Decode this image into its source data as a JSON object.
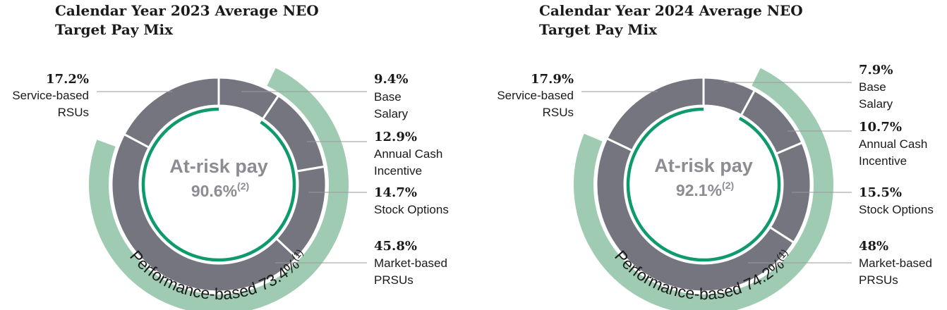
{
  "colors": {
    "segment": "#75757f",
    "segment_stroke": "#ffffff",
    "outer_arc": "#9fcbb3",
    "inner_arc": "#0e9a6c"
  },
  "chart_data": [
    {
      "type": "pie",
      "title_line1": "Calendar Year 2023 Average NEO",
      "title_line2": "Target Pay Mix",
      "center_label": "At-risk pay",
      "center_value": "90.6%",
      "center_note": "(2)",
      "outer_arc_label": "Performance-based 73.4%",
      "outer_arc_note": "(1)",
      "outer_arc_value": 73.4,
      "inner_arc_value": 90.6,
      "segments": [
        {
          "name": "Base Salary",
          "pct_label": "9.4%",
          "value": 9.4,
          "label_lines": [
            "Base",
            "Salary"
          ]
        },
        {
          "name": "Annual Cash Incentive",
          "pct_label": "12.9%",
          "value": 12.9,
          "label_lines": [
            "Annual Cash",
            "Incentive"
          ]
        },
        {
          "name": "Stock Options",
          "pct_label": "14.7%",
          "value": 14.7,
          "label_lines": [
            "Stock Options"
          ]
        },
        {
          "name": "Market-based PRSUs",
          "pct_label": "45.8%",
          "value": 45.8,
          "label_lines": [
            "Market-based",
            "PRSUs"
          ]
        },
        {
          "name": "Service-based RSUs",
          "pct_label": "17.2%",
          "value": 17.2,
          "label_lines": [
            "Service-based",
            "RSUs"
          ]
        }
      ]
    },
    {
      "type": "pie",
      "title_line1": "Calendar Year 2024 Average NEO",
      "title_line2": "Target Pay Mix",
      "center_label": "At-risk pay",
      "center_value": "92.1%",
      "center_note": "(2)",
      "outer_arc_label": "Performance-based 74.2%",
      "outer_arc_note": "(1)",
      "outer_arc_value": 74.2,
      "inner_arc_value": 92.1,
      "segments": [
        {
          "name": "Base Salary",
          "pct_label": "7.9%",
          "value": 7.9,
          "label_lines": [
            "Base",
            "Salary"
          ]
        },
        {
          "name": "Annual Cash Incentive",
          "pct_label": "10.7%",
          "value": 10.7,
          "label_lines": [
            "Annual Cash",
            "Incentive"
          ]
        },
        {
          "name": "Stock Options",
          "pct_label": "15.5%",
          "value": 15.5,
          "label_lines": [
            "Stock Options"
          ]
        },
        {
          "name": "Market-based PRSUs",
          "pct_label": "48%",
          "value": 48,
          "label_lines": [
            "Market-based",
            "PRSUs"
          ]
        },
        {
          "name": "Service-based RSUs",
          "pct_label": "17.9%",
          "value": 17.9,
          "label_lines": [
            "Service-based",
            "RSUs"
          ]
        }
      ]
    }
  ]
}
